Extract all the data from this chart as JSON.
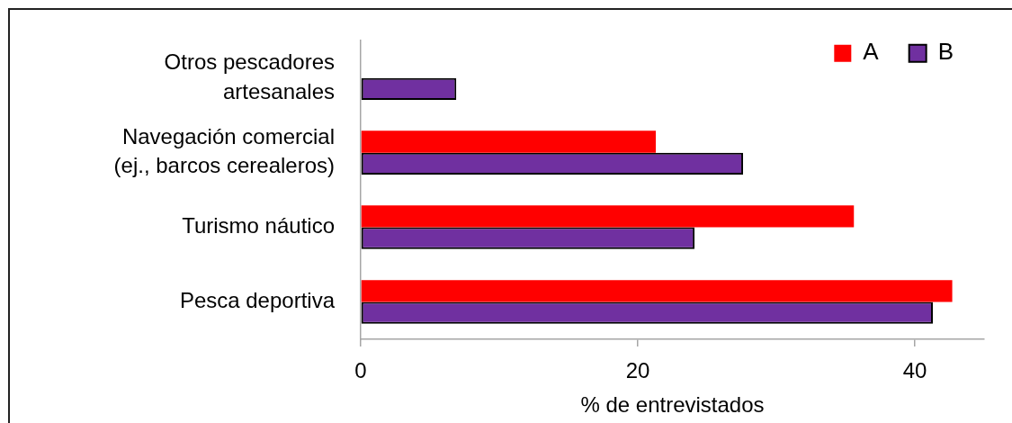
{
  "chart_data": {
    "type": "bar",
    "orientation": "horizontal",
    "xlabel": "% de entrevistados",
    "categories": [
      "Otros pescadores artesanales",
      "Navegación comercial (ej., barcos cerealeros)",
      "Turismo náutico",
      "Pesca deportiva"
    ],
    "series": [
      {
        "name": "A",
        "color": "#ff0000",
        "values": [
          null,
          21.3,
          35.6,
          42.7
        ]
      },
      {
        "name": "B",
        "color": "#7030a0",
        "values": [
          6.9,
          27.6,
          24.1,
          41.3
        ]
      }
    ],
    "xlim": [
      0,
      45
    ],
    "xticks": [
      0,
      20,
      40
    ],
    "grid": false,
    "legend": "top right"
  }
}
